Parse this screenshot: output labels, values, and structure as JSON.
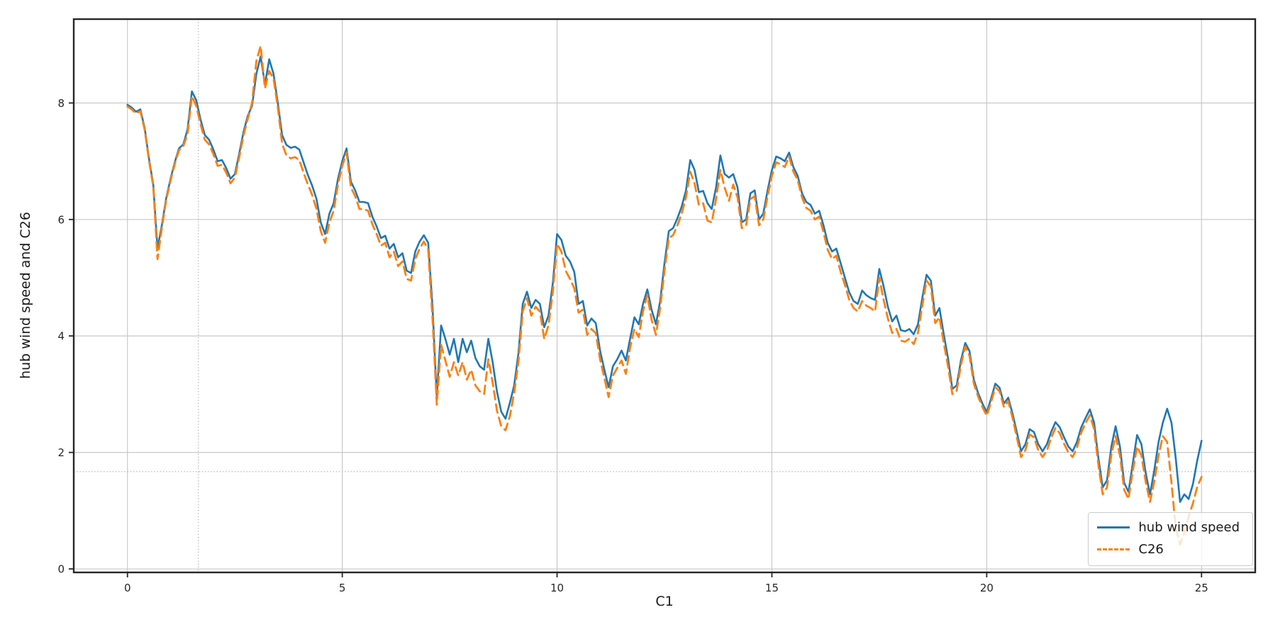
{
  "chart_data": {
    "type": "line",
    "title": "",
    "xlabel": "C1",
    "ylabel": "hub wind speed and C26",
    "xlim": [
      -1.25,
      26.25
    ],
    "ylim": [
      -0.06,
      9.44
    ],
    "xticks": [
      0,
      5,
      10,
      15,
      20,
      25
    ],
    "yticks": [
      0,
      2,
      4,
      6,
      8
    ],
    "grid": true,
    "crosshair": {
      "x": 1.65,
      "y": 1.67
    },
    "legend_location": "lower right",
    "x_start": 0.0,
    "x_step": 0.1,
    "series": [
      {
        "key": "hub-wind-speed",
        "name": "hub wind speed",
        "color": "#1f77b4",
        "dash": false,
        "values": [
          7.97,
          7.92,
          7.85,
          7.89,
          7.57,
          7.05,
          6.6,
          5.5,
          5.9,
          6.36,
          6.69,
          6.98,
          7.22,
          7.29,
          7.55,
          8.2,
          8.05,
          7.72,
          7.45,
          7.37,
          7.2,
          7.0,
          7.02,
          6.88,
          6.7,
          6.78,
          7.12,
          7.5,
          7.78,
          7.95,
          8.5,
          8.8,
          8.32,
          8.75,
          8.5,
          8.0,
          7.45,
          7.28,
          7.23,
          7.25,
          7.2,
          6.98,
          6.76,
          6.58,
          6.35,
          5.95,
          5.75,
          6.1,
          6.28,
          6.7,
          7.0,
          7.22,
          6.65,
          6.5,
          6.3,
          6.3,
          6.28,
          6.05,
          5.88,
          5.68,
          5.72,
          5.5,
          5.58,
          5.35,
          5.42,
          5.12,
          5.08,
          5.45,
          5.62,
          5.73,
          5.6,
          4.5,
          2.95,
          4.18,
          3.95,
          3.68,
          3.95,
          3.55,
          3.95,
          3.72,
          3.92,
          3.62,
          3.48,
          3.42,
          3.95,
          3.55,
          3.05,
          2.7,
          2.58,
          2.85,
          3.15,
          3.7,
          4.55,
          4.76,
          4.48,
          4.62,
          4.55,
          4.15,
          4.35,
          4.9,
          5.75,
          5.65,
          5.38,
          5.28,
          5.1,
          4.55,
          4.6,
          4.18,
          4.3,
          4.22,
          3.75,
          3.42,
          3.12,
          3.48,
          3.6,
          3.75,
          3.58,
          3.95,
          4.32,
          4.2,
          4.55,
          4.8,
          4.45,
          4.2,
          4.6,
          5.25,
          5.8,
          5.85,
          6.02,
          6.22,
          6.5,
          7.02,
          6.85,
          6.47,
          6.49,
          6.28,
          6.18,
          6.55,
          7.1,
          6.78,
          6.72,
          6.78,
          6.55,
          5.95,
          6.0,
          6.45,
          6.5,
          6.0,
          6.1,
          6.5,
          6.85,
          7.08,
          7.05,
          7.0,
          7.15,
          6.9,
          6.75,
          6.45,
          6.3,
          6.25,
          6.1,
          6.15,
          5.9,
          5.6,
          5.45,
          5.5,
          5.25,
          5.0,
          4.75,
          4.6,
          4.55,
          4.78,
          4.7,
          4.65,
          4.62,
          5.15,
          4.85,
          4.5,
          4.25,
          4.35,
          4.1,
          4.08,
          4.12,
          4.03,
          4.2,
          4.65,
          5.05,
          4.95,
          4.35,
          4.48,
          4.03,
          3.62,
          3.09,
          3.15,
          3.58,
          3.88,
          3.74,
          3.25,
          3.02,
          2.84,
          2.69,
          2.92,
          3.18,
          3.11,
          2.84,
          2.94,
          2.67,
          2.35,
          2.02,
          2.14,
          2.4,
          2.35,
          2.14,
          2.02,
          2.14,
          2.35,
          2.52,
          2.43,
          2.26,
          2.1,
          2.02,
          2.18,
          2.43,
          2.59,
          2.74,
          2.51,
          1.9,
          1.4,
          1.52,
          2.1,
          2.45,
          2.1,
          1.48,
          1.32,
          1.81,
          2.3,
          2.14,
          1.65,
          1.28,
          1.69,
          2.18,
          2.51,
          2.75,
          2.51,
          1.9,
          1.15,
          1.28,
          1.2,
          1.46,
          1.86,
          2.2
        ]
      },
      {
        "key": "c26",
        "name": "C26",
        "color": "#ff7f0e",
        "dash": true,
        "values": [
          7.94,
          7.89,
          7.82,
          7.86,
          7.54,
          7.02,
          6.57,
          5.32,
          5.85,
          6.33,
          6.66,
          6.95,
          7.19,
          7.26,
          7.47,
          8.12,
          7.95,
          7.64,
          7.37,
          7.29,
          7.12,
          6.92,
          6.94,
          6.8,
          6.62,
          6.72,
          7.06,
          7.44,
          7.73,
          8.0,
          8.72,
          8.98,
          8.25,
          8.55,
          8.42,
          7.92,
          7.3,
          7.1,
          7.05,
          7.07,
          7.02,
          6.8,
          6.6,
          6.42,
          6.18,
          5.8,
          5.6,
          5.95,
          6.15,
          6.6,
          6.92,
          7.15,
          6.55,
          6.4,
          6.18,
          6.18,
          6.15,
          5.92,
          5.75,
          5.55,
          5.6,
          5.35,
          5.45,
          5.2,
          5.28,
          4.98,
          4.95,
          5.32,
          5.5,
          5.62,
          5.48,
          4.3,
          2.82,
          3.85,
          3.58,
          3.3,
          3.55,
          3.32,
          3.55,
          3.25,
          3.42,
          3.15,
          3.05,
          3.0,
          3.6,
          3.2,
          2.72,
          2.45,
          2.38,
          2.62,
          3.02,
          3.55,
          4.42,
          4.65,
          4.35,
          4.5,
          4.42,
          3.95,
          4.18,
          4.75,
          5.58,
          5.45,
          5.12,
          4.98,
          4.82,
          4.4,
          4.45,
          4.02,
          4.12,
          4.05,
          3.6,
          3.28,
          2.95,
          3.32,
          3.45,
          3.58,
          3.35,
          3.8,
          4.12,
          3.98,
          4.42,
          4.7,
          4.28,
          4.02,
          4.48,
          5.12,
          5.68,
          5.73,
          5.9,
          6.1,
          6.38,
          6.82,
          6.62,
          6.25,
          6.28,
          5.98,
          5.95,
          6.35,
          6.85,
          6.55,
          6.32,
          6.6,
          6.38,
          5.85,
          5.9,
          6.35,
          6.4,
          5.9,
          6.0,
          6.4,
          6.75,
          6.98,
          6.95,
          6.9,
          7.08,
          6.82,
          6.68,
          6.38,
          6.2,
          6.15,
          6.0,
          6.05,
          5.78,
          5.48,
          5.32,
          5.38,
          5.1,
          4.88,
          4.62,
          4.48,
          4.42,
          4.6,
          4.52,
          4.48,
          4.42,
          5.0,
          4.62,
          4.3,
          4.05,
          4.12,
          3.92,
          3.9,
          3.95,
          3.86,
          4.05,
          4.52,
          4.95,
          4.85,
          4.22,
          4.32,
          3.88,
          3.48,
          3.0,
          3.06,
          3.5,
          3.82,
          3.66,
          3.18,
          2.96,
          2.78,
          2.63,
          2.86,
          3.12,
          3.05,
          2.78,
          2.88,
          2.6,
          2.26,
          1.92,
          2.04,
          2.31,
          2.26,
          2.04,
          1.92,
          2.03,
          2.25,
          2.42,
          2.33,
          2.15,
          2.0,
          1.92,
          2.08,
          2.34,
          2.5,
          2.64,
          2.4,
          1.78,
          1.28,
          1.4,
          1.96,
          2.28,
          1.95,
          1.36,
          1.2,
          1.68,
          2.1,
          1.95,
          1.5,
          1.15,
          1.5,
          1.95,
          2.28,
          2.18,
          1.48,
          0.7,
          0.42,
          0.62,
          0.9,
          1.13,
          1.41,
          1.58
        ]
      }
    ]
  }
}
